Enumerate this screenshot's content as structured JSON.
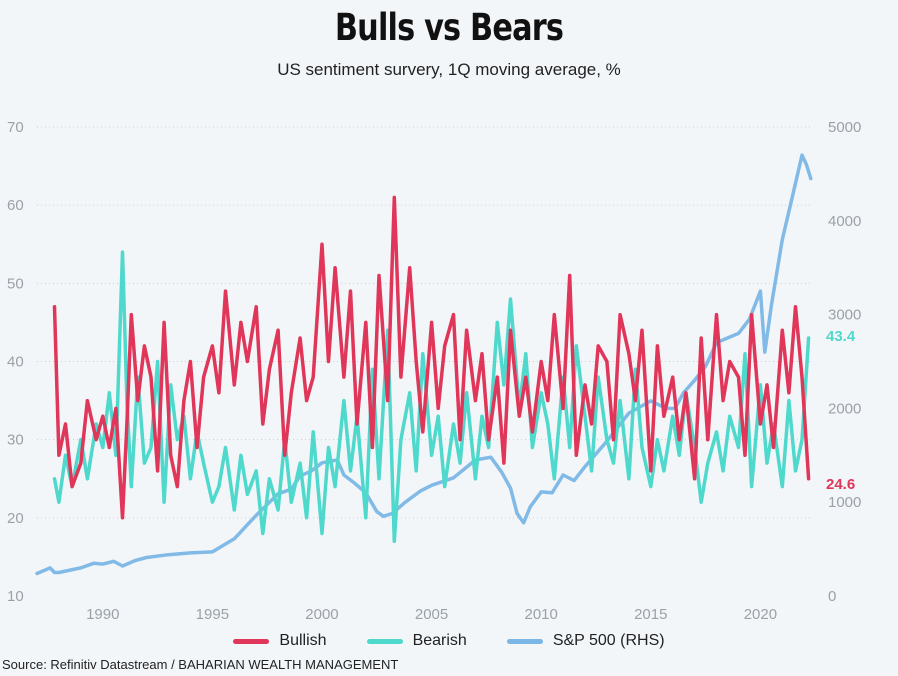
{
  "title": "Bulls vs Bears",
  "subtitle": "US sentiment survery, 1Q moving average, %",
  "source": "Source: Refinitiv Datastream / BAHARIAN WEALTH MANAGEMENT",
  "legend": [
    {
      "label": "Bullish",
      "color": "#e0365a"
    },
    {
      "label": "Bearish",
      "color": "#4fd8cc"
    },
    {
      "label": "S&P 500 (RHS)",
      "color": "#7ab6e6"
    }
  ],
  "end_labels": {
    "bearish": "43.4",
    "bullish": "24.6"
  },
  "chart_data": {
    "type": "line",
    "x_ticks": [
      "1990",
      "1995",
      "2000",
      "2005",
      "2010",
      "2015",
      "2020"
    ],
    "y_left_ticks": [
      "70",
      "60",
      "50",
      "40",
      "30",
      "20",
      "10"
    ],
    "y_right_ticks": [
      "5000",
      "4000",
      "3000",
      "2000",
      "1000",
      "0"
    ],
    "xlim": [
      1987,
      2022.4
    ],
    "ylim_left": [
      10,
      70
    ],
    "ylim_right": [
      0,
      5000
    ],
    "grid": true,
    "series": [
      {
        "name": "Bullish",
        "axis": "left",
        "color": "#e0365a",
        "x": [
          1987.8,
          1988.0,
          1988.3,
          1988.6,
          1989.0,
          1989.3,
          1989.7,
          1990.0,
          1990.3,
          1990.6,
          1990.9,
          1991.1,
          1991.3,
          1991.6,
          1991.9,
          1992.2,
          1992.5,
          1992.8,
          1993.1,
          1993.4,
          1993.7,
          1994.0,
          1994.3,
          1994.6,
          1995.0,
          1995.3,
          1995.6,
          1996.0,
          1996.3,
          1996.6,
          1997.0,
          1997.3,
          1997.6,
          1998.0,
          1998.3,
          1998.6,
          1999.0,
          1999.3,
          1999.6,
          2000.0,
          2000.3,
          2000.6,
          2001.0,
          2001.3,
          2001.6,
          2002.0,
          2002.3,
          2002.6,
          2003.0,
          2003.3,
          2003.6,
          2004.0,
          2004.3,
          2004.6,
          2005.0,
          2005.3,
          2005.6,
          2006.0,
          2006.3,
          2006.6,
          2007.0,
          2007.3,
          2007.6,
          2008.0,
          2008.3,
          2008.6,
          2009.0,
          2009.3,
          2009.6,
          2010.0,
          2010.3,
          2010.6,
          2011.0,
          2011.3,
          2011.6,
          2012.0,
          2012.3,
          2012.6,
          2013.0,
          2013.3,
          2013.6,
          2014.0,
          2014.3,
          2014.6,
          2015.0,
          2015.3,
          2015.6,
          2016.0,
          2016.3,
          2016.6,
          2017.0,
          2017.3,
          2017.6,
          2018.0,
          2018.3,
          2018.6,
          2019.0,
          2019.3,
          2019.6,
          2020.0,
          2020.3,
          2020.6,
          2021.0,
          2021.3,
          2021.6,
          2021.9,
          2022.2
        ],
        "values": [
          47,
          28,
          32,
          24,
          27,
          35,
          30,
          33,
          29,
          34,
          20,
          32,
          46,
          35,
          42,
          38,
          26,
          45,
          28,
          24,
          35,
          40,
          29,
          38,
          42,
          36,
          49,
          37,
          45,
          40,
          47,
          32,
          39,
          44,
          28,
          36,
          43,
          35,
          38,
          55,
          40,
          52,
          38,
          49,
          32,
          45,
          29,
          51,
          35,
          61,
          38,
          52,
          40,
          31,
          45,
          34,
          42,
          46,
          30,
          44,
          35,
          41,
          30,
          38,
          27,
          44,
          33,
          38,
          31,
          40,
          35,
          46,
          34,
          51,
          28,
          37,
          32,
          42,
          40,
          30,
          46,
          41,
          35,
          44,
          26,
          42,
          33,
          38,
          30,
          36,
          25,
          43,
          30,
          46,
          35,
          40,
          38,
          28,
          46,
          32,
          37,
          29,
          44,
          36,
          47,
          38,
          25
        ]
      },
      {
        "name": "Bearish",
        "axis": "left",
        "color": "#4fd8cc",
        "x": [
          1987.8,
          1988.0,
          1988.3,
          1988.6,
          1989.0,
          1989.3,
          1989.7,
          1990.0,
          1990.3,
          1990.6,
          1990.9,
          1991.1,
          1991.3,
          1991.6,
          1991.9,
          1992.2,
          1992.5,
          1992.8,
          1993.1,
          1993.4,
          1993.7,
          1994.0,
          1994.3,
          1994.6,
          1995.0,
          1995.3,
          1995.6,
          1996.0,
          1996.3,
          1996.6,
          1997.0,
          1997.3,
          1997.6,
          1998.0,
          1998.3,
          1998.6,
          1999.0,
          1999.3,
          1999.6,
          2000.0,
          2000.3,
          2000.6,
          2001.0,
          2001.3,
          2001.6,
          2002.0,
          2002.3,
          2002.6,
          2003.0,
          2003.3,
          2003.6,
          2004.0,
          2004.3,
          2004.6,
          2005.0,
          2005.3,
          2005.6,
          2006.0,
          2006.3,
          2006.6,
          2007.0,
          2007.3,
          2007.6,
          2008.0,
          2008.3,
          2008.6,
          2009.0,
          2009.3,
          2009.6,
          2010.0,
          2010.3,
          2010.6,
          2011.0,
          2011.3,
          2011.6,
          2012.0,
          2012.3,
          2012.6,
          2013.0,
          2013.3,
          2013.6,
          2014.0,
          2014.3,
          2014.6,
          2015.0,
          2015.3,
          2015.6,
          2016.0,
          2016.3,
          2016.6,
          2017.0,
          2017.3,
          2017.6,
          2018.0,
          2018.3,
          2018.6,
          2019.0,
          2019.3,
          2019.6,
          2020.0,
          2020.3,
          2020.6,
          2021.0,
          2021.3,
          2021.6,
          2021.9,
          2022.2
        ],
        "values": [
          25,
          22,
          28,
          24,
          30,
          25,
          32,
          29,
          36,
          28,
          54,
          35,
          24,
          38,
          27,
          29,
          40,
          22,
          37,
          30,
          33,
          25,
          31,
          27,
          22,
          24,
          29,
          21,
          28,
          23,
          26,
          18,
          25,
          21,
          30,
          22,
          27,
          20,
          31,
          18,
          29,
          24,
          35,
          26,
          33,
          20,
          39,
          25,
          44,
          17,
          30,
          36,
          26,
          41,
          28,
          33,
          24,
          32,
          27,
          36,
          25,
          33,
          29,
          45,
          37,
          48,
          34,
          41,
          29,
          36,
          32,
          25,
          38,
          29,
          42,
          33,
          26,
          38,
          30,
          27,
          35,
          25,
          39,
          29,
          24,
          30,
          26,
          33,
          28,
          36,
          29,
          22,
          27,
          31,
          26,
          33,
          29,
          41,
          24,
          37,
          27,
          32,
          24,
          35,
          26,
          30,
          43
        ]
      },
      {
        "name": "S&P 500 (RHS)",
        "axis": "right",
        "color": "#7ab6e6",
        "x": [
          1987.0,
          1987.6,
          1987.8,
          1988.0,
          1989.0,
          1989.6,
          1990.0,
          1990.5,
          1990.9,
          1991.5,
          1992.0,
          1993.0,
          1994.0,
          1995.0,
          1996.0,
          1997.0,
          1998.0,
          1998.6,
          1999.0,
          1999.5,
          2000.0,
          2000.7,
          2001.0,
          2001.5,
          2002.0,
          2002.5,
          2002.8,
          2003.2,
          2003.8,
          2004.5,
          2005.0,
          2006.0,
          2007.0,
          2007.7,
          2008.2,
          2008.6,
          2008.9,
          2009.2,
          2009.5,
          2010.0,
          2010.5,
          2011.0,
          2011.5,
          2012.0,
          2013.0,
          2014.0,
          2015.0,
          2015.7,
          2016.1,
          2016.5,
          2017.0,
          2017.5,
          2018.0,
          2018.5,
          2019.0,
          2019.5,
          2020.0,
          2020.2,
          2020.5,
          2021.0,
          2021.5,
          2021.9,
          2022.1,
          2022.3
        ],
        "values": [
          240,
          300,
          250,
          250,
          300,
          350,
          340,
          370,
          320,
          380,
          410,
          440,
          460,
          470,
          610,
          860,
          1090,
          1140,
          1280,
          1330,
          1420,
          1450,
          1290,
          1200,
          1100,
          900,
          850,
          880,
          1000,
          1120,
          1180,
          1260,
          1450,
          1480,
          1320,
          1150,
          880,
          780,
          950,
          1110,
          1100,
          1290,
          1230,
          1380,
          1650,
          1950,
          2080,
          2000,
          2000,
          2170,
          2300,
          2450,
          2700,
          2750,
          2800,
          2950,
          3250,
          2600,
          3100,
          3800,
          4300,
          4700,
          4600,
          4450
        ]
      }
    ]
  }
}
